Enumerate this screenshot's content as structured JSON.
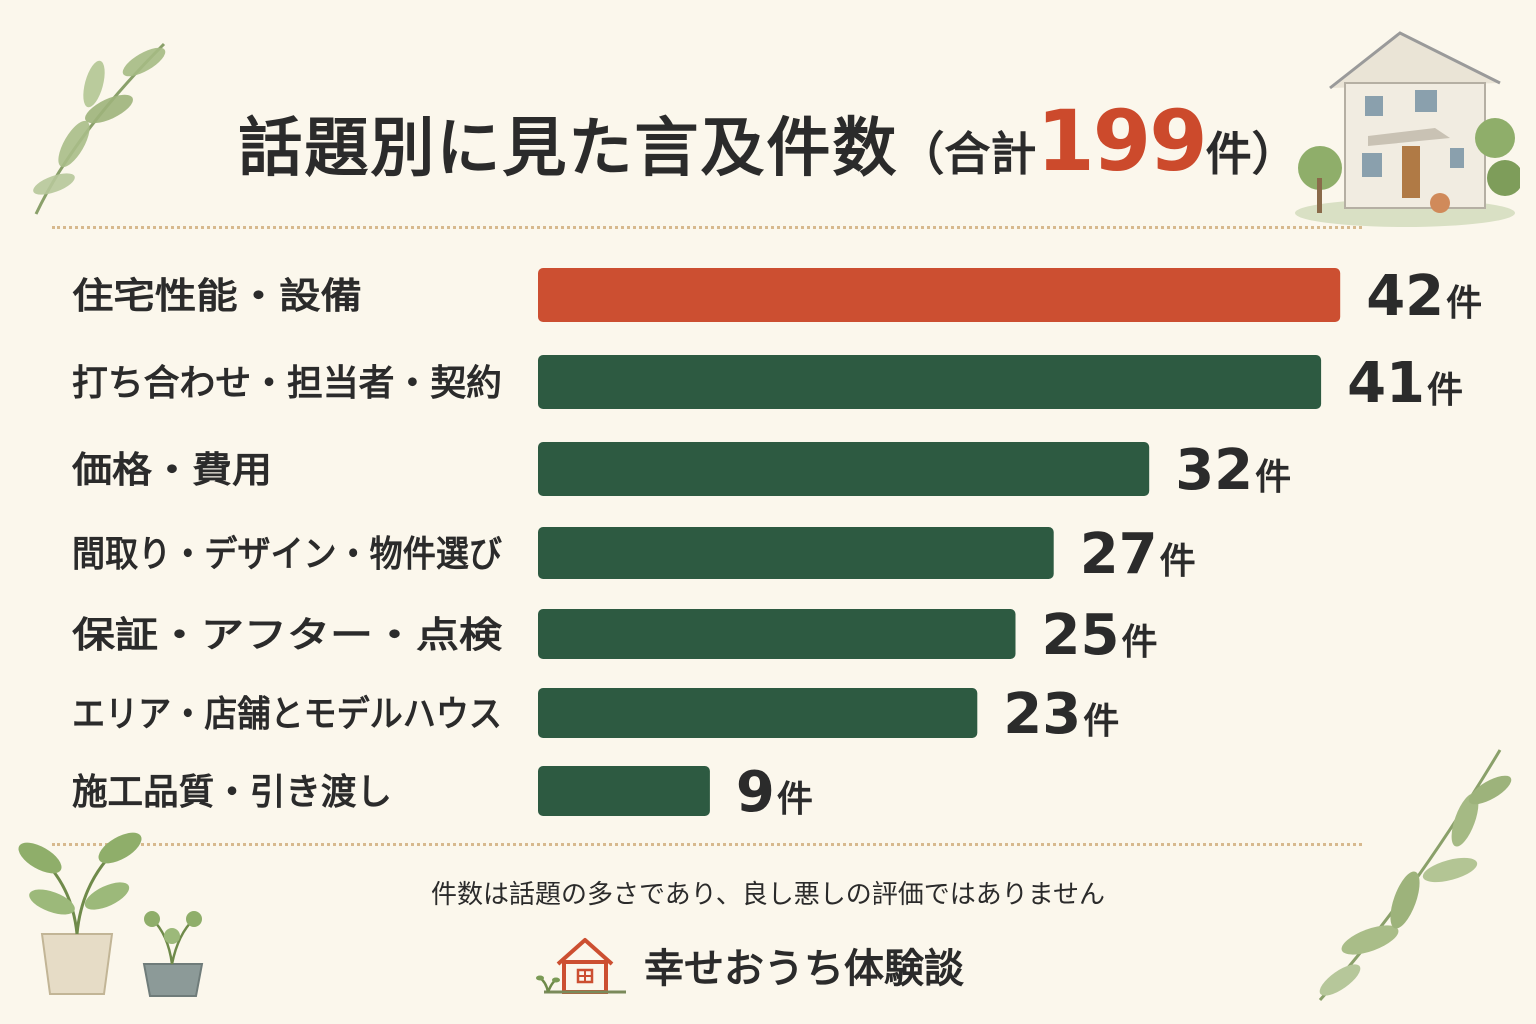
{
  "title": {
    "main": "話題別に見た言及件数",
    "paren_open": "（",
    "total_prefix": "合計",
    "total_value": "199",
    "total_unit": "件",
    "paren_close": "）"
  },
  "chart_data": {
    "type": "bar",
    "orientation": "horizontal",
    "categories": [
      "住宅性能・設備",
      "打ち合わせ・担当者・契約",
      "価格・費用",
      "間取り・デザイン・物件選び",
      "保証・アフター・点検",
      "エリア・店舗とモデルハウス",
      "施工品質・引き渡し"
    ],
    "values": [
      42,
      41,
      32,
      27,
      25,
      23,
      9
    ],
    "unit": "件",
    "highlight_index": 0,
    "colors": {
      "highlight": "#cc4f31",
      "default": "#2d5a41"
    },
    "grid": false
  },
  "footnote": "件数は話題の多さであり、良し悪しの評価ではありません",
  "brand": {
    "name": "幸せおうち体験談",
    "icon": "house-logo-icon"
  },
  "decorations": [
    "leaf-branch-icon",
    "house-illustration-icon",
    "potted-plant-icon"
  ]
}
